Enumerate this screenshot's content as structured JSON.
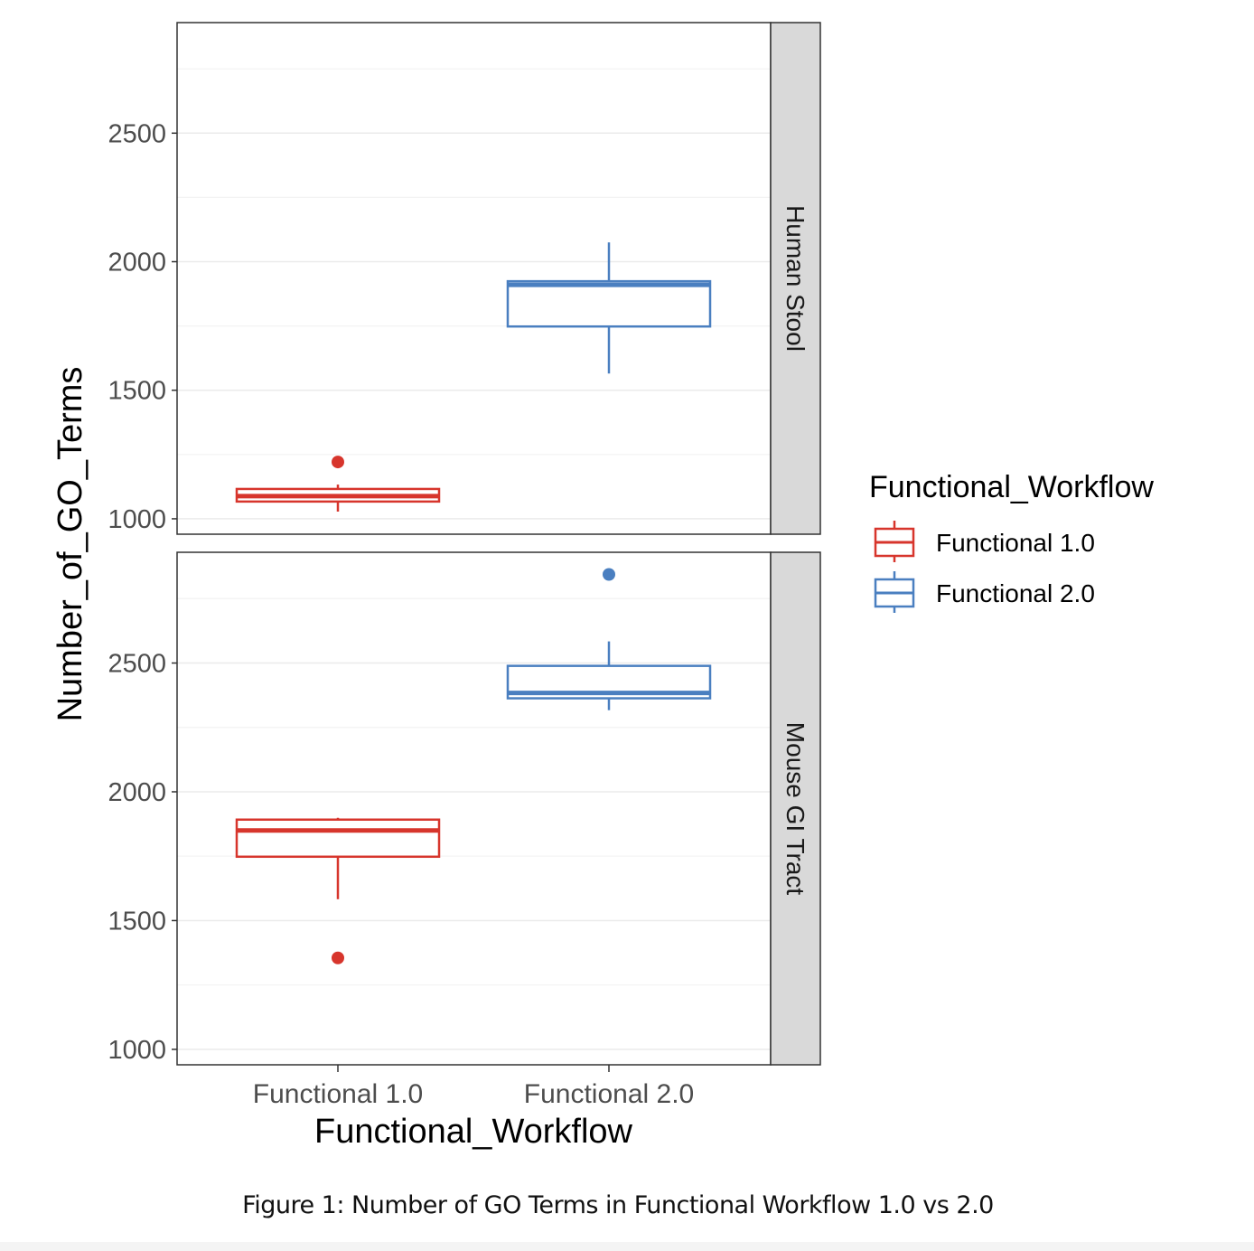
{
  "chart_data": {
    "type": "boxplot",
    "xlabel": "Functional_Workflow",
    "ylabel": "Number_of_GO_Terms",
    "categories": [
      "Functional 1.0",
      "Functional 2.0"
    ],
    "colors": {
      "Functional 1.0": "#d7352c",
      "Functional 2.0": "#4a7fc0"
    },
    "ylim": [
      940,
      2930
    ],
    "yticks": [
      1000,
      1500,
      2000,
      2500
    ],
    "grid": true,
    "legend": {
      "title": "Functional_Workflow",
      "position": "right",
      "entries": [
        "Functional 1.0",
        "Functional 2.0"
      ]
    },
    "panels": [
      {
        "label": "Human Stool",
        "boxes": [
          {
            "category": "Functional 1.0",
            "whisker_low": 1028,
            "q1": 1067,
            "median": 1088,
            "q3": 1116,
            "whisker_high": 1133,
            "outliers": [
              1221
            ]
          },
          {
            "category": "Functional 2.0",
            "whisker_low": 1565,
            "q1": 1748,
            "median": 1910,
            "q3": 1924,
            "whisker_high": 2075,
            "outliers": []
          }
        ]
      },
      {
        "label": "Mouse GI Tract",
        "boxes": [
          {
            "category": "Functional 1.0",
            "whisker_low": 1583,
            "q1": 1748,
            "median": 1850,
            "q3": 1892,
            "whisker_high": 1899,
            "outliers": [
              1355
            ]
          },
          {
            "category": "Functional 2.0",
            "whisker_low": 2317,
            "q1": 2363,
            "median": 2384,
            "q3": 2489,
            "whisker_high": 2584,
            "outliers": [
              2844
            ]
          }
        ]
      }
    ]
  },
  "caption": "Figure 1: Number of GO Terms in Functional Workflow 1.0 vs 2.0"
}
